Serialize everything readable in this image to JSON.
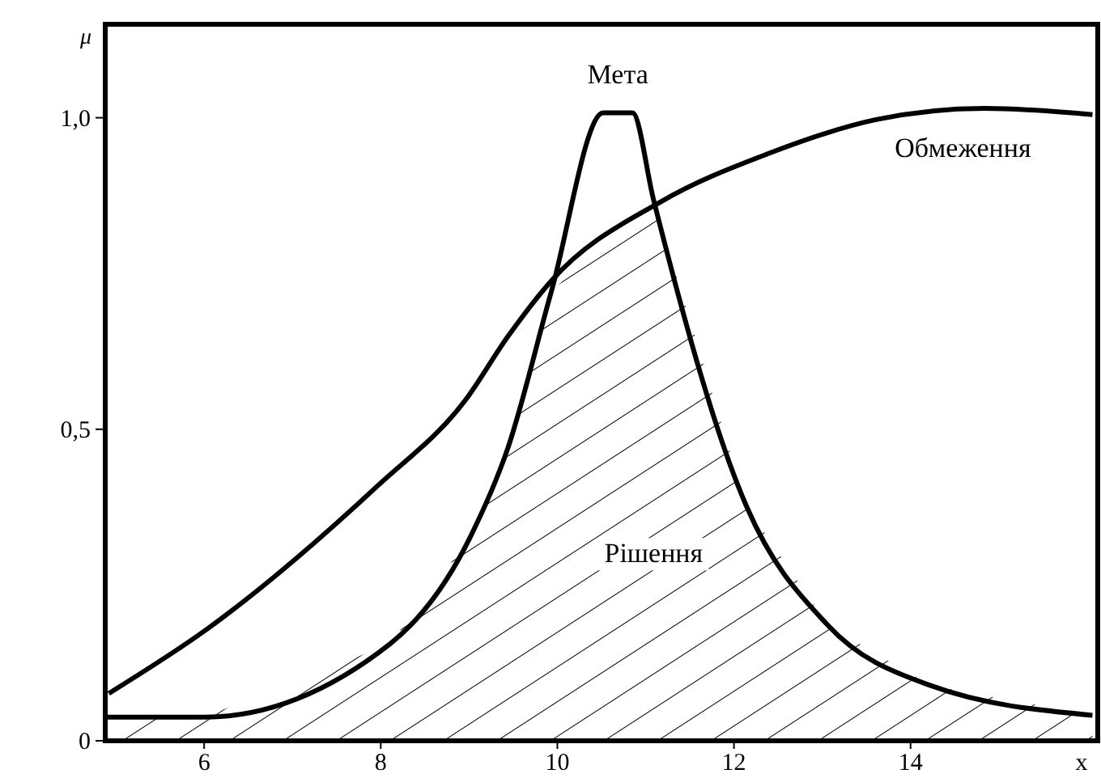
{
  "chart_data": {
    "type": "line",
    "xlabel": "x",
    "ylabel": "μ",
    "xlim": [
      4.88,
      16.12
    ],
    "ylim": [
      0,
      1.15
    ],
    "xticks": [
      6,
      8,
      10,
      12,
      14
    ],
    "yticks": [
      0,
      {
        "value": 0.5,
        "label": "0,5"
      },
      {
        "value": 1,
        "label": "1,0"
      }
    ],
    "grid": false,
    "series": [
      {
        "name": "Рішення",
        "type": "area",
        "color": "#000000",
        "x": [
          4.88,
          6.0,
          8.1,
          9.01,
          9.44,
          9.93,
          10.5,
          11.09,
          12.14,
          13.06,
          14.22,
          16.06
        ],
        "values": [
          0.038,
          0.038,
          0.155,
          0.326,
          0.47,
          0.72,
          0.8,
          0.868,
          0.377,
          0.186,
          0.089,
          0.041
        ]
      },
      {
        "name": "Обмеження",
        "color": "#000000",
        "x": [
          4.92,
          6.02,
          7.97,
          8.96,
          9.44,
          9.93,
          11.17,
          12.38,
          13.61,
          14.84,
          16.06
        ],
        "values": [
          0.076,
          0.178,
          0.41,
          0.547,
          0.649,
          0.738,
          0.865,
          0.942,
          0.997,
          1.015,
          1.005
        ]
      },
      {
        "name": "Мета",
        "color": "#000000",
        "x": [
          4.88,
          6.0,
          8.1,
          9.01,
          9.44,
          9.93,
          10.52,
          10.85,
          11.09,
          12.14,
          13.06,
          14.22,
          16.06
        ],
        "values": [
          0.038,
          0.038,
          0.155,
          0.326,
          0.47,
          0.72,
          1.008,
          1.008,
          0.868,
          0.377,
          0.186,
          0.089,
          0.041
        ]
      }
    ]
  }
}
